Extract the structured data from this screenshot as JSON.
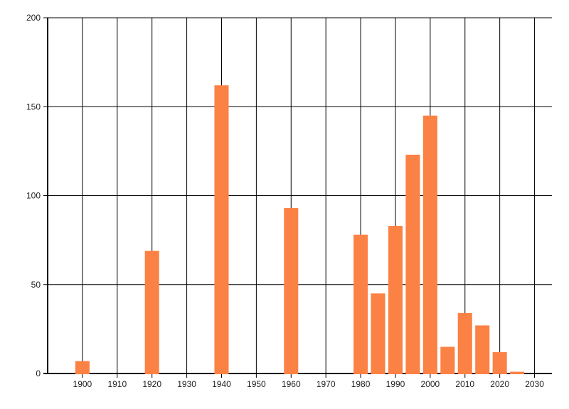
{
  "chart_data": {
    "type": "bar",
    "title": "",
    "xlabel": "",
    "ylabel": "",
    "x": [
      1900,
      1920,
      1940,
      1960,
      1980,
      1985,
      1990,
      1995,
      2000,
      2005,
      2010,
      2015,
      2020,
      2025
    ],
    "values": [
      7,
      69,
      162,
      93,
      78,
      45,
      83,
      123,
      145,
      15,
      34,
      27,
      12,
      1
    ],
    "xlim": [
      1890,
      2035
    ],
    "ylim": [
      0,
      200
    ],
    "x_ticks": [
      1900,
      1910,
      1920,
      1930,
      1940,
      1950,
      1960,
      1970,
      1980,
      1990,
      2000,
      2010,
      2020,
      2030
    ],
    "y_ticks": [
      0,
      50,
      100,
      150,
      200
    ],
    "bar_width_years": 4.1,
    "grid": "on",
    "legend": "none",
    "colors": {
      "bar": "#fc8144",
      "grid": "#000000",
      "axis": "#000000",
      "tick_label": "#222222",
      "background": "#ffffff"
    }
  }
}
